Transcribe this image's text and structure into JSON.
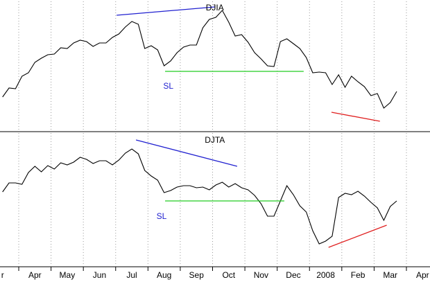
{
  "chart_data": [
    {
      "type": "line",
      "title": "DJIA",
      "color": "#000000",
      "xlim": [
        -0.58,
        12.73
      ],
      "ylim": [
        0,
        190
      ],
      "grid": true,
      "x": [
        -0.5,
        -0.3,
        -0.1,
        0.1,
        0.3,
        0.5,
        0.7,
        0.9,
        1.1,
        1.3,
        1.5,
        1.7,
        1.9,
        2.1,
        2.3,
        2.5,
        2.7,
        2.9,
        3.1,
        3.3,
        3.5,
        3.7,
        3.9,
        4.1,
        4.3,
        4.5,
        4.7,
        4.9,
        5.1,
        5.3,
        5.5,
        5.7,
        5.9,
        6.1,
        6.3,
        6.5,
        6.7,
        6.9,
        7.1,
        7.3,
        7.5,
        7.7,
        7.9,
        8.1,
        8.3,
        8.5,
        8.7,
        8.9,
        9.1,
        9.3,
        9.5,
        9.7,
        9.9,
        10.1,
        10.3,
        10.5,
        10.7,
        10.9,
        11.1,
        11.3,
        11.5,
        11.7
      ],
      "values": [
        50,
        63,
        62,
        80,
        85,
        100,
        106,
        111,
        112,
        121,
        120,
        128,
        132,
        130,
        123,
        128,
        128,
        136,
        141,
        151,
        159,
        155,
        120,
        124,
        118,
        95,
        102,
        114,
        122,
        125,
        125,
        150,
        162,
        165,
        175,
        158,
        138,
        140,
        129,
        114,
        105,
        95,
        94,
        130,
        134,
        127,
        120,
        107,
        85,
        86,
        85,
        68,
        82,
        64,
        80,
        72,
        65,
        52,
        55,
        34,
        42,
        58
      ],
      "annotations": [
        {
          "text": "DJIA",
          "x": 6.07,
          "y": 178,
          "color": "#000000"
        },
        {
          "text": "SL",
          "x": 4.63,
          "y": 65,
          "color": "#2020d0"
        }
      ],
      "lines": [
        {
          "color": "#2020d0",
          "x": [
            3.03,
            6.07
          ],
          "y": [
            168,
            180
          ]
        },
        {
          "color": "#22cc22",
          "x": [
            4.53,
            8.82
          ],
          "y": [
            87,
            87
          ]
        },
        {
          "color": "#e02020",
          "x": [
            9.68,
            11.18
          ],
          "y": [
            28,
            15
          ]
        }
      ]
    },
    {
      "type": "line",
      "title": "DJTA",
      "color": "#000000",
      "xlim": [
        -0.58,
        12.73
      ],
      "ylim": [
        0,
        195
      ],
      "grid": true,
      "x": [
        -0.5,
        -0.3,
        -0.1,
        0.1,
        0.3,
        0.5,
        0.7,
        0.9,
        1.1,
        1.3,
        1.5,
        1.7,
        1.9,
        2.1,
        2.3,
        2.5,
        2.7,
        2.9,
        3.1,
        3.3,
        3.5,
        3.7,
        3.9,
        4.1,
        4.3,
        4.5,
        4.7,
        4.9,
        5.1,
        5.3,
        5.5,
        5.7,
        5.9,
        6.1,
        6.3,
        6.5,
        6.7,
        6.9,
        7.1,
        7.3,
        7.5,
        7.7,
        7.9,
        8.1,
        8.3,
        8.5,
        8.7,
        8.9,
        9.1,
        9.3,
        9.5,
        9.7,
        9.9,
        10.1,
        10.3,
        10.5,
        10.7,
        10.9,
        11.1,
        11.3,
        11.5,
        11.7
      ],
      "values": [
        108,
        121,
        121,
        119,
        136,
        145,
        137,
        146,
        141,
        150,
        147,
        151,
        158,
        155,
        149,
        153,
        153,
        147,
        154,
        164,
        170,
        163,
        139,
        131,
        125,
        107,
        110,
        115,
        117,
        117,
        114,
        115,
        111,
        118,
        122,
        115,
        120,
        114,
        111,
        103,
        91,
        73,
        73,
        95,
        117,
        104,
        88,
        79,
        52,
        33,
        37,
        44,
        100,
        106,
        104,
        109,
        102,
        93,
        85,
        67,
        87,
        95
      ],
      "xticks": [
        {
          "value": -1,
          "label": "r"
        },
        {
          "value": 0,
          "label": "Apr"
        },
        {
          "value": 1,
          "label": "May"
        },
        {
          "value": 2,
          "label": "Jun"
        },
        {
          "value": 3,
          "label": "Jul"
        },
        {
          "value": 4,
          "label": "Aug"
        },
        {
          "value": 5,
          "label": "Sep"
        },
        {
          "value": 6,
          "label": "Oct"
        },
        {
          "value": 7,
          "label": "Nov"
        },
        {
          "value": 8,
          "label": "Dec"
        },
        {
          "value": 9,
          "label": "2008"
        },
        {
          "value": 10,
          "label": "Feb"
        },
        {
          "value": 11,
          "label": "Mar"
        },
        {
          "value": 12,
          "label": "Apr"
        }
      ],
      "annotations": [
        {
          "text": "DJTA",
          "x": 6.07,
          "y": 182,
          "color": "#000000"
        },
        {
          "text": "SL",
          "x": 4.42,
          "y": 72,
          "color": "#2020d0"
        }
      ],
      "lines": [
        {
          "color": "#2020d0",
          "x": [
            3.63,
            6.76
          ],
          "y": [
            183,
            145
          ]
        },
        {
          "color": "#22cc22",
          "x": [
            4.53,
            8.22
          ],
          "y": [
            95,
            95
          ]
        },
        {
          "color": "#e02020",
          "x": [
            9.59,
            11.39
          ],
          "y": [
            28,
            60
          ]
        }
      ]
    }
  ]
}
